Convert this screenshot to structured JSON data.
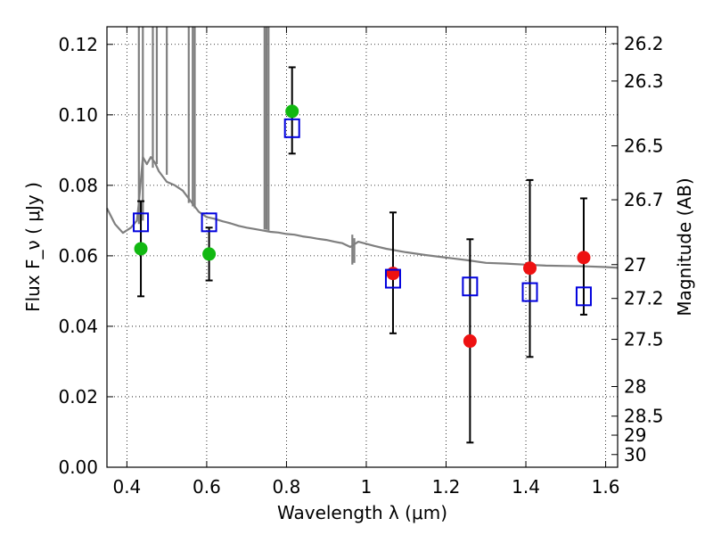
{
  "chart_data": {
    "type": "scatter",
    "title": "",
    "xlabel": "Wavelength  λ (μm)",
    "ylabel": "Flux  F_ν  ( μJy )",
    "ylabel_right": "Magnitude (AB)",
    "xlim": [
      0.35,
      1.63
    ],
    "ylim": [
      0.0,
      0.125
    ],
    "grid": true,
    "grid_style": "dotted",
    "x_ticks": [
      0.4,
      0.6,
      0.8,
      1.0,
      1.2,
      1.4,
      1.6
    ],
    "x_tick_labels": [
      "0.4",
      "0.6",
      "0.8",
      "1",
      "1.2",
      "1.4",
      "1.6"
    ],
    "y_ticks": [
      0.0,
      0.02,
      0.04,
      0.06,
      0.08,
      0.1,
      0.12
    ],
    "y_tick_labels": [
      "0.00",
      "0.02",
      "0.04",
      "0.06",
      "0.08",
      "0.10",
      "0.12"
    ],
    "right_ticks": [
      {
        "label": "26.2",
        "flux": 0.1202
      },
      {
        "label": "26.3",
        "flux": 0.1096
      },
      {
        "label": "26.5",
        "flux": 0.0912
      },
      {
        "label": "26.7",
        "flux": 0.0759
      },
      {
        "label": "27",
        "flux": 0.0575
      },
      {
        "label": "27.2",
        "flux": 0.0479
      },
      {
        "label": "27.5",
        "flux": 0.0363
      },
      {
        "label": "28",
        "flux": 0.0229
      },
      {
        "label": "28.5",
        "flux": 0.0145
      },
      {
        "label": "29",
        "flux": 0.0091
      },
      {
        "label": "30",
        "flux": 0.0036
      }
    ],
    "colors": {
      "green": "#11b811",
      "red": "#ee1111",
      "blue": "#0000dd",
      "model": "#7f7f7f",
      "error": "#000000"
    },
    "series": [
      {
        "type": "line",
        "color": "#7f7f7f",
        "x": [
          0.35,
          0.37,
          0.39,
          0.41,
          0.425,
          0.43,
          0.44,
          0.45,
          0.46,
          0.47,
          0.48,
          0.5,
          0.52,
          0.54,
          0.56,
          0.58,
          0.6,
          0.62,
          0.64,
          0.66,
          0.68,
          0.7,
          0.72,
          0.74,
          0.76,
          0.78,
          0.8,
          0.82,
          0.84,
          0.86,
          0.88,
          0.9,
          0.92,
          0.94,
          0.96,
          0.98,
          1.0,
          1.02,
          1.05,
          1.1,
          1.15,
          1.2,
          1.25,
          1.3,
          1.35,
          1.4,
          1.45,
          1.5,
          1.55,
          1.6,
          1.63
        ],
        "y": [
          0.0735,
          0.069,
          0.0665,
          0.068,
          0.07,
          0.075,
          0.088,
          0.086,
          0.088,
          0.0865,
          0.084,
          0.081,
          0.08,
          0.0785,
          0.0755,
          0.0725,
          0.071,
          0.0705,
          0.0698,
          0.0692,
          0.0685,
          0.068,
          0.0676,
          0.0672,
          0.0668,
          0.0666,
          0.0662,
          0.066,
          0.0655,
          0.0652,
          0.0648,
          0.0645,
          0.064,
          0.0636,
          0.0625,
          0.064,
          0.0634,
          0.0628,
          0.062,
          0.061,
          0.0602,
          0.0595,
          0.0588,
          0.058,
          0.0578,
          0.0575,
          0.0572,
          0.0571,
          0.057,
          0.0568,
          0.0566
        ]
      },
      {
        "type": "model_spikes",
        "color": "#7f7f7f",
        "x": [
          0.43,
          0.44,
          0.465,
          0.475,
          0.5,
          0.555,
          0.565,
          0.57,
          0.745,
          0.75,
          0.755,
          0.965,
          0.97
        ],
        "y_top": [
          0.125,
          0.125,
          0.125,
          0.125,
          0.125,
          0.125,
          0.125,
          0.125,
          0.125,
          0.125,
          0.125,
          0.066,
          0.065
        ],
        "y_bottom": [
          0.069,
          0.07,
          0.085,
          0.086,
          0.083,
          0.075,
          0.074,
          0.0735,
          0.0675,
          0.0674,
          0.0672,
          0.0575,
          0.058
        ]
      },
      {
        "type": "scatter",
        "marker": "circle",
        "color": "#11b811",
        "x": [
          0.435,
          0.606,
          0.814
        ],
        "y": [
          0.062,
          0.0605,
          0.101
        ],
        "err_low": [
          0.0485,
          0.053,
          0.089
        ],
        "err_high": [
          0.0755,
          0.068,
          0.1135
        ]
      },
      {
        "type": "scatter",
        "marker": "circle",
        "color": "#ee1111",
        "x": [
          1.067,
          1.26,
          1.41,
          1.545
        ],
        "y": [
          0.055,
          0.0358,
          0.0565,
          0.0595
        ],
        "err_low": [
          0.038,
          0.007,
          0.0313,
          0.0433
        ],
        "err_high": [
          0.0723,
          0.0647,
          0.0815,
          0.0763
        ]
      },
      {
        "type": "scatter",
        "marker": "square",
        "color": "#0000dd",
        "x": [
          0.435,
          0.606,
          0.814,
          1.067,
          1.26,
          1.41,
          1.545
        ],
        "y": [
          0.0695,
          0.0695,
          0.0962,
          0.0535,
          0.0513,
          0.0497,
          0.0485
        ]
      }
    ]
  }
}
